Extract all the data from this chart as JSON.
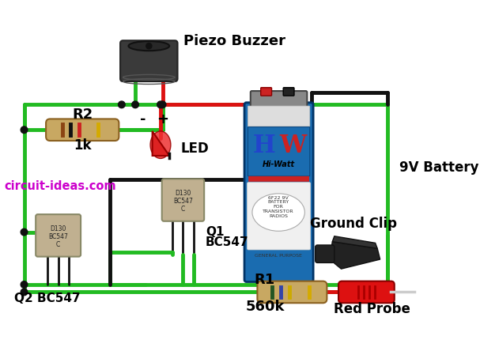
{
  "bg_color": "#ffffff",
  "green_wire": "#22bb22",
  "red_wire": "#dd1111",
  "black_wire": "#111111",
  "label_piezo": "Piezo Buzzer",
  "label_battery": "9V Battery",
  "label_ground": "Ground Clip",
  "label_probe": "Red Probe",
  "label_r1": "R1",
  "label_r1_val": "560k",
  "label_r2": "R2",
  "label_r2_val": "1k",
  "label_led": "LED",
  "label_led_minus": "-",
  "label_led_plus": "+",
  "label_q1": "Q1",
  "label_q1b": "BC547",
  "label_q2": "Q2 BC547",
  "label_website": "circuit-ideas.com",
  "website_color": "#cc00cc",
  "figsize": [
    6.07,
    4.44
  ],
  "dpi": 100,
  "wire_lw": 3.5,
  "dot_r": 5
}
